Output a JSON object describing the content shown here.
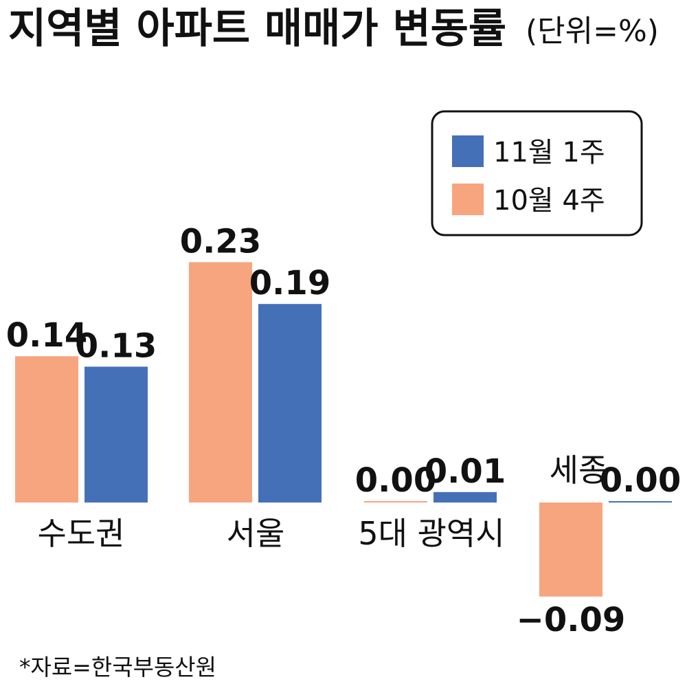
{
  "chart_data": {
    "type": "bar",
    "title": "지역별 아파트 매매가 변동률",
    "unit": "(단위=%)",
    "categories": [
      "수도권",
      "서울",
      "5대 광역시",
      "세종"
    ],
    "series": [
      {
        "name": "10월 4주",
        "color": "#F7A57E",
        "values": [
          0.14,
          0.23,
          0.0,
          -0.09
        ],
        "labels": [
          "0.14",
          "0.23",
          "0.00",
          "−0.09"
        ]
      },
      {
        "name": "11월 1주",
        "color": "#4470B8",
        "values": [
          0.13,
          0.19,
          0.01,
          0.0
        ],
        "labels": [
          "0.13",
          "0.19",
          "0.01",
          "0.00"
        ]
      }
    ],
    "legend_order": [
      "11월 1주",
      "10월 4주"
    ],
    "legend_position": "top-right",
    "grid": false,
    "source": "*자료=한국부동산원"
  }
}
